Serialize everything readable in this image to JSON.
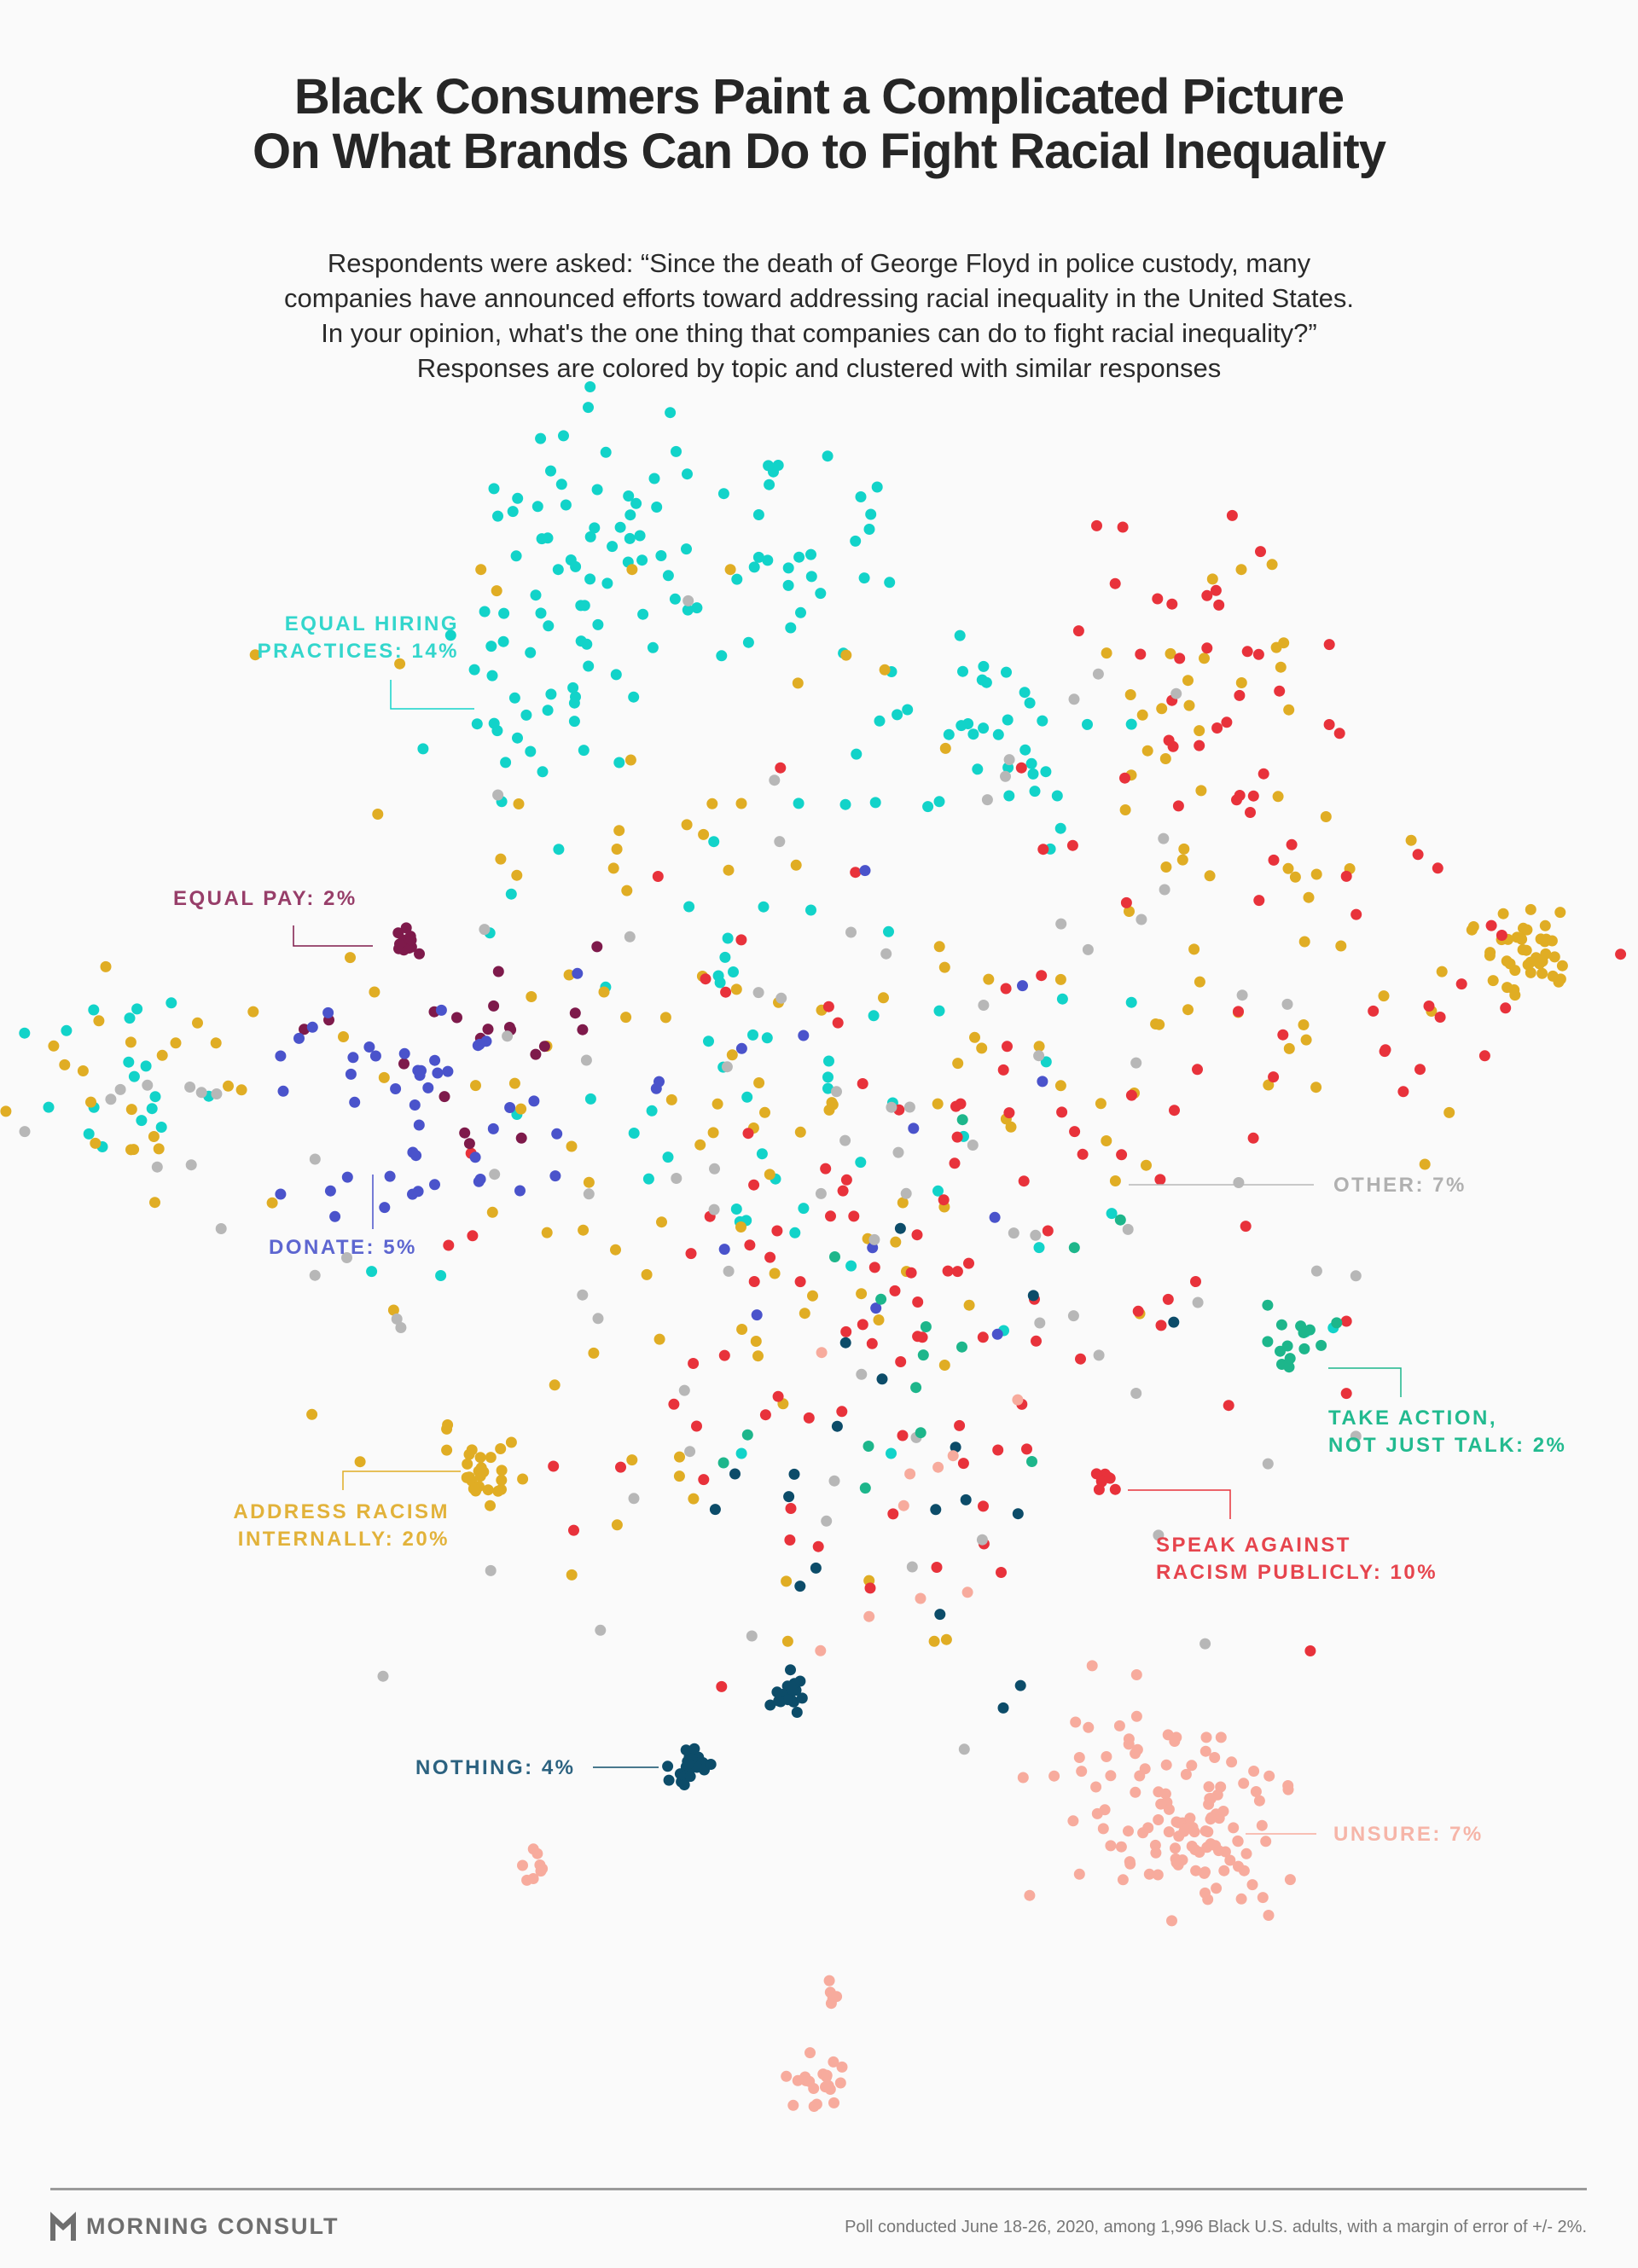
{
  "title": [
    "Black Consumers Paint a Complicated Picture",
    "On What Brands Can Do to Fight Racial Inequality"
  ],
  "subtitle": [
    "Respondents were asked: “Since the death of George Floyd in police custody, many",
    "companies have announced efforts toward addressing racial inequality in the United States.",
    "In your opinion, what's the one thing that companies can do to fight racial inequality?”",
    "Responses are colored by topic and clustered with similar responses"
  ],
  "footer": {
    "logo": "MORNING CONSULT",
    "note": "Poll conducted June 18-26, 2020, among 1,996 Black U.S. adults, with a margin of error of +/- 2%."
  },
  "chart_data": {
    "type": "scatter",
    "title": "Black Consumers Paint a Complicated Picture On What Brands Can Do to Fight Racial Inequality",
    "xlabel": "",
    "ylabel": "",
    "xlim": [
      0,
      100
    ],
    "ylim": [
      0,
      100
    ],
    "grid": false,
    "legend": "inline labels",
    "categories": [
      {
        "key": "hiring",
        "lines": [
          "EQUAL HIRING",
          "PRACTICES: 14%"
        ],
        "pct": 14,
        "color": "#12d3c9"
      },
      {
        "key": "pay",
        "lines": [
          "EQUAL PAY: 2%"
        ],
        "pct": 2,
        "color": "#7e1a4b"
      },
      {
        "key": "donate",
        "lines": [
          "DONATE: 5%"
        ],
        "pct": 5,
        "color": "#4a53cb"
      },
      {
        "key": "other",
        "lines": [
          "OTHER: 7%"
        ],
        "pct": 7,
        "color": "#b7b7b7"
      },
      {
        "key": "action",
        "lines": [
          "TAKE ACTION,",
          "NOT JUST TALK: 2%"
        ],
        "pct": 2,
        "color": "#1db68b"
      },
      {
        "key": "internal",
        "lines": [
          "ADDRESS RACISM",
          "INTERNALLY: 20%"
        ],
        "pct": 20,
        "color": "#e0ad24"
      },
      {
        "key": "speak",
        "lines": [
          "SPEAK AGAINST",
          "RACISM PUBLICLY: 10%"
        ],
        "pct": 10,
        "color": "#e8323b"
      },
      {
        "key": "nothing",
        "lines": [
          "NOTHING: 4%"
        ],
        "pct": 4,
        "color": "#0c4c69"
      },
      {
        "key": "unsure",
        "lines": [
          "UNSURE: 7%"
        ],
        "pct": 7,
        "color": "#f7ab9d"
      }
    ],
    "clusters": [
      {
        "cat": "hiring",
        "x": 36.5,
        "y": 6.4,
        "sx": 3.5,
        "sy": 3.5,
        "n": 45
      },
      {
        "cat": "hiring",
        "x": 32,
        "y": 15.5,
        "sx": 3.5,
        "sy": 3.2,
        "n": 35
      },
      {
        "cat": "hiring",
        "x": 48.5,
        "y": 7.2,
        "sx": 4,
        "sy": 3.2,
        "n": 30
      },
      {
        "cat": "hiring",
        "x": 58.6,
        "y": 18.9,
        "sx": 4.5,
        "sy": 3.5,
        "n": 35
      },
      {
        "cat": "hiring",
        "x": 7,
        "y": 38.8,
        "sx": 3.5,
        "sy": 3.5,
        "n": 18
      },
      {
        "cat": "hiring",
        "x": 45.7,
        "y": 38,
        "sx": 11,
        "sy": 10,
        "n": 60
      },
      {
        "cat": "hiring",
        "x": 81,
        "y": 53,
        "sx": 0.8,
        "sy": 0.8,
        "n": 2
      },
      {
        "cat": "internal",
        "x": 7,
        "y": 39.5,
        "sx": 4,
        "sy": 3.5,
        "n": 20
      },
      {
        "cat": "internal",
        "x": 43.9,
        "y": 40,
        "sx": 15,
        "sy": 14,
        "n": 120
      },
      {
        "cat": "internal",
        "x": 74.3,
        "y": 16.4,
        "sx": 5,
        "sy": 4.5,
        "n": 25
      },
      {
        "cat": "internal",
        "x": 95,
        "y": 30.9,
        "sx": 1.5,
        "sy": 1.3,
        "n": 40
      },
      {
        "cat": "internal",
        "x": 28.7,
        "y": 60.8,
        "sx": 1.1,
        "sy": 1,
        "n": 25
      },
      {
        "cat": "internal",
        "x": 80.8,
        "y": 33.8,
        "sx": 7,
        "sy": 5,
        "n": 30
      },
      {
        "cat": "speak",
        "x": 76,
        "y": 16,
        "sx": 5,
        "sy": 4.5,
        "n": 35
      },
      {
        "cat": "speak",
        "x": 55,
        "y": 47,
        "sx": 13,
        "sy": 12,
        "n": 110
      },
      {
        "cat": "speak",
        "x": 90,
        "y": 33,
        "sx": 7,
        "sy": 5,
        "n": 20
      },
      {
        "cat": "speak",
        "x": 68.3,
        "y": 61.7,
        "sx": 0.5,
        "sy": 0.4,
        "n": 8
      },
      {
        "cat": "pay",
        "x": 23.8,
        "y": 30.9,
        "sx": 0.5,
        "sy": 0.5,
        "n": 12
      },
      {
        "cat": "pay",
        "x": 28.2,
        "y": 34.7,
        "sx": 5,
        "sy": 4,
        "n": 20
      },
      {
        "cat": "donate",
        "x": 24.5,
        "y": 41.3,
        "sx": 4,
        "sy": 3.5,
        "n": 45
      },
      {
        "cat": "donate",
        "x": 48,
        "y": 40,
        "sx": 13,
        "sy": 12,
        "n": 15
      },
      {
        "cat": "other",
        "x": 49,
        "y": 44,
        "sx": 16,
        "sy": 15,
        "n": 80
      },
      {
        "cat": "other",
        "x": 7,
        "y": 40,
        "sx": 3.5,
        "sy": 3.5,
        "n": 10
      },
      {
        "cat": "nothing",
        "x": 48.1,
        "y": 73.7,
        "sx": 0.6,
        "sy": 0.55,
        "n": 18
      },
      {
        "cat": "nothing",
        "x": 41.9,
        "y": 77.9,
        "sx": 0.7,
        "sy": 0.6,
        "n": 22
      },
      {
        "cat": "nothing",
        "x": 55,
        "y": 60,
        "sx": 8,
        "sy": 8,
        "n": 20
      },
      {
        "cat": "unsure",
        "x": 74.3,
        "y": 81.6,
        "sx": 2.6,
        "sy": 2.4,
        "n": 90
      },
      {
        "cat": "unsure",
        "x": 69,
        "y": 78.8,
        "sx": 3.5,
        "sy": 3,
        "n": 30
      },
      {
        "cat": "unsure",
        "x": 49.9,
        "y": 96.2,
        "sx": 0.9,
        "sy": 0.8,
        "n": 20
      },
      {
        "cat": "unsure",
        "x": 51.1,
        "y": 91,
        "sx": 0.5,
        "sy": 0.5,
        "n": 6
      },
      {
        "cat": "unsure",
        "x": 32.1,
        "y": 83.7,
        "sx": 0.6,
        "sy": 0.6,
        "n": 8
      },
      {
        "cat": "unsure",
        "x": 57,
        "y": 63,
        "sx": 5,
        "sy": 4,
        "n": 10
      },
      {
        "cat": "action",
        "x": 81,
        "y": 53.4,
        "sx": 1.1,
        "sy": 1.1,
        "n": 14
      },
      {
        "cat": "action",
        "x": 56,
        "y": 53,
        "sx": 6,
        "sy": 6,
        "n": 15
      }
    ]
  }
}
